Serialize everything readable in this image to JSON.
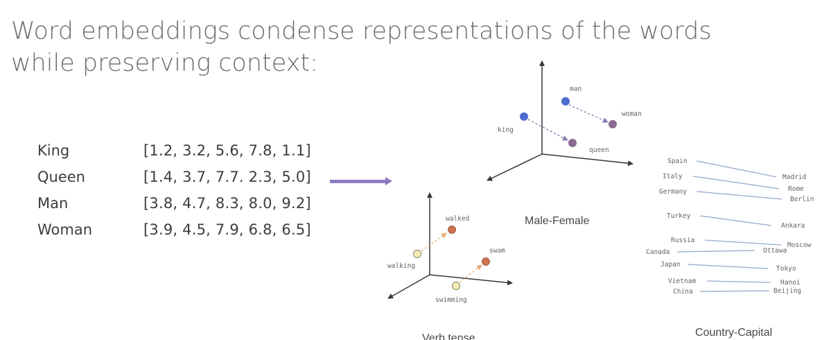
{
  "title": "Word embeddings condense representations of the words while preserving context:",
  "embeddings": [
    {
      "word": "King",
      "vector": "[1.2, 3.2, 5.6, 7.8, 1.1]"
    },
    {
      "word": "Queen",
      "vector": "[1.4, 3.7, 7.7. 2.3, 5.0]"
    },
    {
      "word": "Man",
      "vector": "[3.8, 4.7, 8.3, 8.0, 9.2]"
    },
    {
      "word": "Woman",
      "vector": "[3.9, 4.5, 7.9, 6.8, 6.5]"
    }
  ],
  "colors": {
    "arrow": "#8e7cc3",
    "blue_point": "#3a5bc7",
    "purple_point": "#7d5a84",
    "orange_point": "#c8643c",
    "yellow_point": "#f4eab0",
    "dashed_arrow_mf": "#7b6fa8",
    "dashed_arrow_vt": "#e3a36a",
    "country_line": "#8aa0c8"
  },
  "male_female": {
    "caption": "Male-Female",
    "labels": {
      "man": "man",
      "woman": "woman",
      "king": "king",
      "queen": "queen"
    }
  },
  "verb_tense": {
    "caption": "Verb tense",
    "labels": {
      "walked": "walked",
      "walking": "walking",
      "swam": "swam",
      "swimming": "swimming"
    }
  },
  "country_capital": {
    "caption": "Country-Capital",
    "countries": [
      "Spain",
      "Italy",
      "Germany",
      "Turkey",
      "Russia",
      "Canada",
      "Japan",
      "Vietnam",
      "China"
    ],
    "capitals": [
      "Madrid",
      "Rome",
      "Berlin",
      "Ankara",
      "Moscow",
      "Ottawa",
      "Tokyo",
      "Hanoi",
      "Beijing"
    ]
  }
}
